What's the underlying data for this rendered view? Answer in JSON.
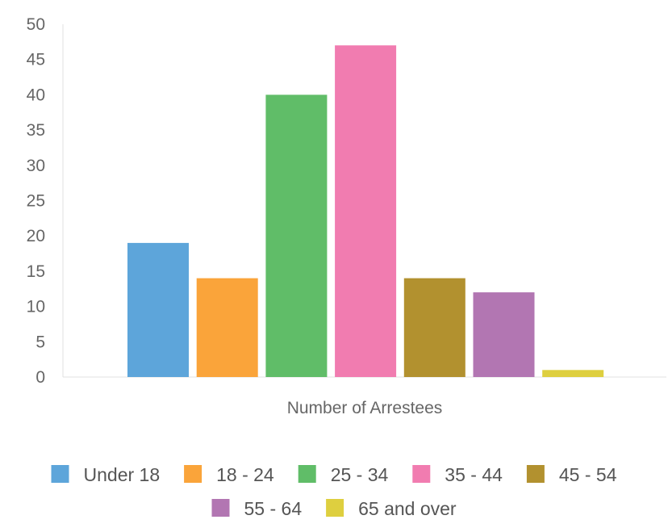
{
  "chart_data": {
    "type": "bar",
    "title": "",
    "xlabel": "Number of Arrestees",
    "ylabel": "",
    "ylim": [
      0,
      50
    ],
    "yticks": [
      0,
      5,
      10,
      15,
      20,
      25,
      30,
      35,
      40,
      45,
      50
    ],
    "grid": false,
    "legend_position": "bottom",
    "categories": [
      "Number of Arrestees"
    ],
    "series": [
      {
        "name": "Under 18",
        "values": [
          19
        ],
        "color": "#5DA5DA"
      },
      {
        "name": "18 - 24",
        "values": [
          14
        ],
        "color": "#FAA43A"
      },
      {
        "name": "25 - 34",
        "values": [
          40
        ],
        "color": "#60BD68"
      },
      {
        "name": "35 - 44",
        "values": [
          47
        ],
        "color": "#F17CB0"
      },
      {
        "name": "45 - 54",
        "values": [
          14
        ],
        "color": "#B2912F"
      },
      {
        "name": "55 - 64",
        "values": [
          12
        ],
        "color": "#B276B2"
      },
      {
        "name": "65 and over",
        "values": [
          1
        ],
        "color": "#DECF3F"
      }
    ]
  }
}
